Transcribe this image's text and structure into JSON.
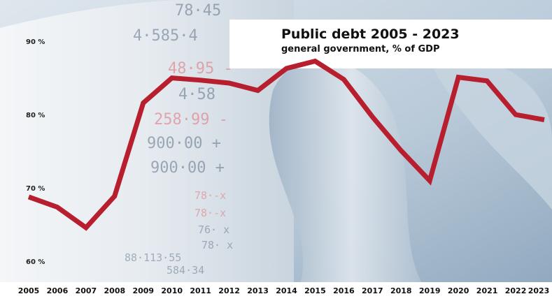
{
  "chart_data": {
    "type": "line",
    "title": "Public debt 2005 - 2023",
    "subtitle": "general government,  % of GDP",
    "x": [
      "2005",
      "2006",
      "2007",
      "2008",
      "2009",
      "2010",
      "2011",
      "2012",
      "2013",
      "2014",
      "2015",
      "2016",
      "2017",
      "2018",
      "2019",
      "2020",
      "2021",
      "2022",
      "2023"
    ],
    "series": [
      {
        "values": [
          69.1,
          67.7,
          64.9,
          69.2,
          81.9,
          85.3,
          85.0,
          84.6,
          83.6,
          86.6,
          87.6,
          85.1,
          80.0,
          75.4,
          71.3,
          85.4,
          84.9,
          80.3,
          79.6
        ]
      }
    ],
    "yticks": [
      {
        "value": 60,
        "label": "60 %"
      },
      {
        "value": 70,
        "label": "70 %"
      },
      {
        "value": 80,
        "label": "80 %"
      },
      {
        "value": 90,
        "label": "90 %"
      }
    ],
    "ylim": [
      59,
      95
    ],
    "grid": false,
    "line_color": "#b81f2e"
  }
}
